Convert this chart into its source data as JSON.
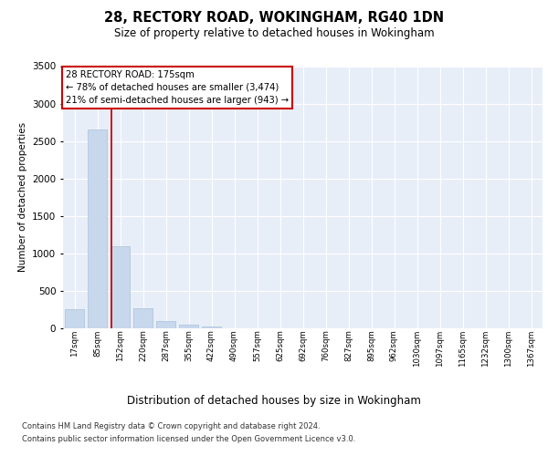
{
  "title": "28, RECTORY ROAD, WOKINGHAM, RG40 1DN",
  "subtitle": "Size of property relative to detached houses in Wokingham",
  "xlabel": "Distribution of detached houses by size in Wokingham",
  "ylabel": "Number of detached properties",
  "bar_color": "#c8d8ec",
  "bar_edge_color": "#a8c0dc",
  "background_color": "#ffffff",
  "plot_bg_color": "#e8eef8",
  "grid_color": "#ffffff",
  "annotation_line_color": "#cc0000",
  "bin_labels": [
    "17sqm",
    "85sqm",
    "152sqm",
    "220sqm",
    "287sqm",
    "355sqm",
    "422sqm",
    "490sqm",
    "557sqm",
    "625sqm",
    "692sqm",
    "760sqm",
    "827sqm",
    "895sqm",
    "962sqm",
    "1030sqm",
    "1097sqm",
    "1165sqm",
    "1232sqm",
    "1300sqm",
    "1367sqm"
  ],
  "bar_heights": [
    250,
    2650,
    1100,
    265,
    100,
    50,
    28,
    0,
    0,
    0,
    0,
    0,
    0,
    0,
    0,
    0,
    0,
    0,
    0,
    0,
    0
  ],
  "annotation_title": "28 RECTORY ROAD: 175sqm",
  "annotation_line1": "← 78% of detached houses are smaller (3,474)",
  "annotation_line2": "21% of semi-detached houses are larger (943) →",
  "ylim": [
    0,
    3500
  ],
  "yticks": [
    0,
    500,
    1000,
    1500,
    2000,
    2500,
    3000,
    3500
  ],
  "red_line_x": 1.62,
  "footer_line1": "Contains HM Land Registry data © Crown copyright and database right 2024.",
  "footer_line2": "Contains public sector information licensed under the Open Government Licence v3.0."
}
